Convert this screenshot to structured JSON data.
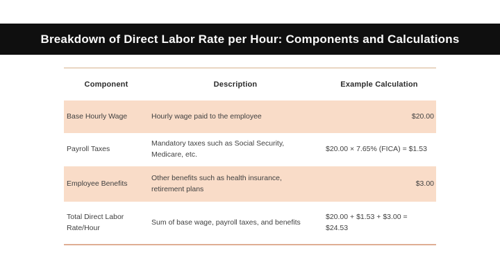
{
  "theme": {
    "black_bar": "#0f0f0f",
    "title_text": "#fafafa",
    "row_peach": "#f9dcc8",
    "rule_top": "#e9d6c2",
    "rule_bottom": "#dfad93",
    "text_dark": "#2b2b2b",
    "text_body": "#3f3f3f",
    "page_bg": "#ffffff"
  },
  "chart_data": {
    "type": "table",
    "title": "Breakdown of Direct Labor Rate per Hour: Components and Calculations",
    "columns": [
      "Component",
      "Description",
      "Example Calculation"
    ],
    "rows": [
      {
        "component": "Base Hourly Wage",
        "description": "Hourly wage paid to the employee",
        "calculation": "$20.00"
      },
      {
        "component": "Payroll Taxes",
        "description": "Mandatory taxes such as Social Security,\nMedicare, etc.",
        "calculation": "$20.00 × 7.65% (FICA) = $1.53"
      },
      {
        "component": "Employee Benefits",
        "description": "Other benefits such as health insurance,\nretirement plans",
        "calculation": "$3.00"
      },
      {
        "component": "Total Direct Labor\nRate/Hour",
        "description": "Sum of base wage, payroll taxes, and benefits",
        "calculation": "$20.00 + $1.53 + $3.00 =\n$24.53"
      }
    ]
  }
}
